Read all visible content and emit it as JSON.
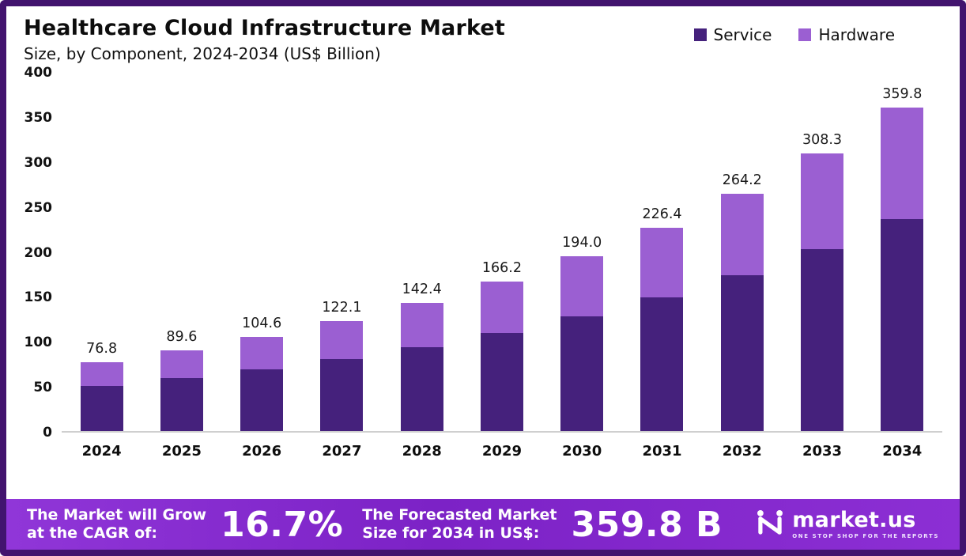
{
  "chart": {
    "title": "Healthcare Cloud Infrastructure Market",
    "subtitle": "Size, by Component, 2024-2034 (US$ Billion)"
  },
  "legend": [
    {
      "label": "Service",
      "color": "#45217c"
    },
    {
      "label": "Hardware",
      "color": "#9b5fd2"
    }
  ],
  "chart_data": {
    "type": "bar",
    "stacked": true,
    "title": "Healthcare Cloud Infrastructure Market Size, by Component, 2024-2034 (US$ Billion)",
    "categories": [
      "2024",
      "2025",
      "2026",
      "2027",
      "2028",
      "2029",
      "2030",
      "2031",
      "2032",
      "2033",
      "2034"
    ],
    "series": [
      {
        "name": "Service",
        "color": "#45217c",
        "values": [
          50.3,
          58.7,
          68.5,
          80.0,
          93.3,
          108.9,
          127.1,
          148.3,
          173.1,
          202.0,
          235.7
        ]
      },
      {
        "name": "Hardware",
        "color": "#9b5fd2",
        "values": [
          26.5,
          30.9,
          36.1,
          42.1,
          49.1,
          57.3,
          66.9,
          78.1,
          91.1,
          106.3,
          124.1
        ]
      }
    ],
    "totals": [
      76.8,
      89.6,
      104.6,
      122.1,
      142.4,
      166.2,
      194.0,
      226.4,
      264.2,
      308.3,
      359.8
    ],
    "xlabel": "",
    "ylabel": "",
    "ylim": [
      0,
      400
    ],
    "ytick_step": 50,
    "grid": false,
    "legend_position": "top-right"
  },
  "banner": {
    "cagr_label_line1": "The Market will Grow",
    "cagr_label_line2": "at the CAGR of:",
    "cagr_value": "16.7%",
    "forecast_label_line1": "The Forecasted Market",
    "forecast_label_line2": "Size for 2034 in US$:",
    "forecast_value": "359.8 B",
    "logo_text": "market.us",
    "logo_tagline": "One Stop Shop for the Reports"
  }
}
